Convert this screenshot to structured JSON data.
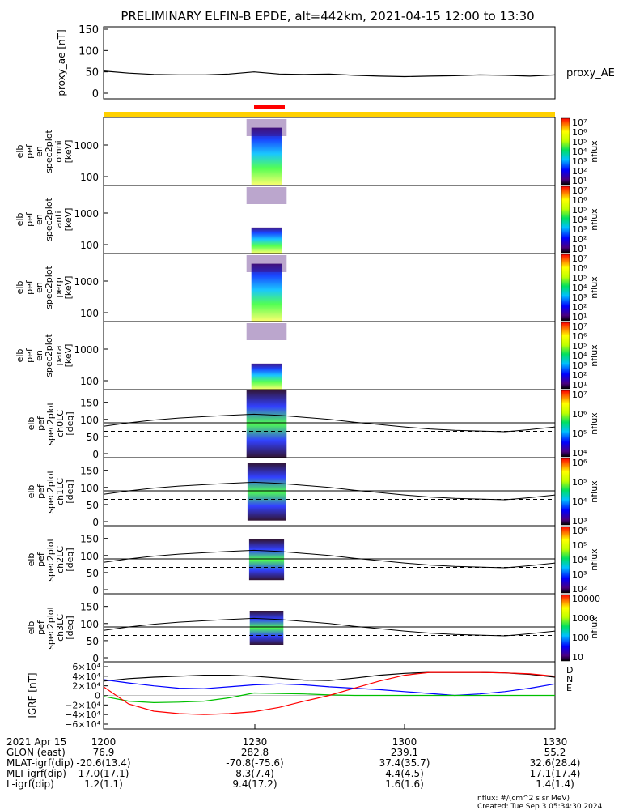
{
  "title": "PRELIMINARY ELFIN-B EPDE, alt=442km, 2021-04-15 12:00 to 13:30",
  "footer_left_labels": [
    "2021 Apr 15",
    "GLON (east)",
    "MLAT-igrf(dip)",
    "MLT-igrf(dip)",
    "L-igrf(dip)"
  ],
  "footer_columns": [
    {
      "time": "1200",
      "values": [
        "76.9",
        "-20.6(13.4)",
        "17.0(17.1)",
        "1.2(1.1)"
      ]
    },
    {
      "time": "1230",
      "values": [
        "282.8",
        "-70.8(-75.6)",
        "8.3(7.4)",
        "9.4(17.2)"
      ]
    },
    {
      "time": "1300",
      "values": [
        "239.1",
        "37.4(35.7)",
        "4.4(4.5)",
        "1.6(1.6)"
      ]
    },
    {
      "time": "1330",
      "values": [
        "55.2",
        "32.6(28.4)",
        "17.1(17.4)",
        "1.4(1.4)"
      ]
    }
  ],
  "footer_right_line1": "nflux: #/(cm^2 s sr MeV)",
  "footer_right_line2": "Created: Tue Sep  3 05:34:30 2024",
  "chart_data": [
    {
      "type": "line",
      "ylabel": "proxy_ae [nT]",
      "series_label": "proxy_AE",
      "ylim": [
        0,
        150
      ],
      "yticks": [
        "150",
        "100",
        "50",
        "0"
      ],
      "x_minutes": [
        0,
        5,
        10,
        15,
        20,
        25,
        30,
        35,
        40,
        45,
        50,
        55,
        60,
        65,
        70,
        75,
        80,
        85,
        90
      ],
      "values": [
        52,
        47,
        44,
        43,
        43,
        45,
        50,
        45,
        44,
        45,
        42,
        40,
        39,
        40,
        41,
        43,
        42,
        40,
        43
      ]
    },
    {
      "type": "heatmap",
      "ylabel": [
        "elb",
        "pef",
        "en",
        "spec2plot",
        "omni",
        "[keV]"
      ],
      "scale": "log",
      "yticks": [
        "1000",
        "100"
      ],
      "colorbar_label": "nflux",
      "colorbar_ticks": [
        "10^7",
        "10^6",
        "10^5",
        "10^4",
        "10^3",
        "10^2",
        "10^1"
      ]
    },
    {
      "type": "heatmap",
      "ylabel": [
        "elb",
        "pef",
        "en",
        "spec2plot",
        "anti",
        "[keV]"
      ],
      "scale": "log",
      "yticks": [
        "1000",
        "100"
      ],
      "colorbar_label": "nflux",
      "colorbar_ticks": [
        "10^7",
        "10^6",
        "10^5",
        "10^4",
        "10^3",
        "10^2",
        "10^1"
      ]
    },
    {
      "type": "heatmap",
      "ylabel": [
        "elb",
        "pef",
        "en",
        "spec2plot",
        "perp",
        "[keV]"
      ],
      "scale": "log",
      "yticks": [
        "1000",
        "100"
      ],
      "colorbar_label": "nflux",
      "colorbar_ticks": [
        "10^7",
        "10^6",
        "10^5",
        "10^4",
        "10^3",
        "10^2",
        "10^1"
      ]
    },
    {
      "type": "heatmap",
      "ylabel": [
        "elb",
        "pef",
        "en",
        "spec2plot",
        "para",
        "[keV]"
      ],
      "scale": "log",
      "yticks": [
        "1000",
        "100"
      ],
      "colorbar_label": "nflux",
      "colorbar_ticks": [
        "10^7",
        "10^6",
        "10^5",
        "10^4",
        "10^3",
        "10^2",
        "10^1"
      ]
    },
    {
      "type": "heatmap",
      "ylabel": [
        "elb",
        "pef",
        "spec2plot",
        "ch0LC",
        "[deg]"
      ],
      "ylim": [
        0,
        180
      ],
      "yticks": [
        "150",
        "100",
        "50",
        "0"
      ],
      "colorbar_label": "nflux",
      "colorbar_ticks": [
        "10^7",
        "10^6",
        "10^5",
        "10^4"
      ]
    },
    {
      "type": "heatmap",
      "ylabel": [
        "elb",
        "pef",
        "spec2plot",
        "ch1LC",
        "[deg]"
      ],
      "ylim": [
        0,
        180
      ],
      "yticks": [
        "150",
        "100",
        "50",
        "0"
      ],
      "colorbar_label": "nflux",
      "colorbar_ticks": [
        "10^6",
        "10^5",
        "10^4",
        "10^3"
      ]
    },
    {
      "type": "heatmap",
      "ylabel": [
        "elb",
        "pef",
        "spec2plot",
        "ch2LC",
        "[deg]"
      ],
      "ylim": [
        0,
        180
      ],
      "yticks": [
        "150",
        "100",
        "50",
        "0"
      ],
      "colorbar_label": "nflux",
      "colorbar_ticks": [
        "10^6",
        "10^5",
        "10^4",
        "10^3",
        "10^2"
      ]
    },
    {
      "type": "heatmap",
      "ylabel": [
        "elb",
        "pef",
        "spec2plot",
        "ch3LC",
        "[deg]"
      ],
      "ylim": [
        0,
        180
      ],
      "yticks": [
        "150",
        "100",
        "50",
        "0"
      ],
      "colorbar_label": "nflux",
      "colorbar_ticks": [
        "10000",
        "1000",
        "100",
        "10"
      ]
    },
    {
      "type": "line",
      "ylabel": "IGRF [nT]",
      "ylim": [
        -60000,
        60000
      ],
      "yticks": [
        "6×10⁴",
        "4×10⁴",
        "2×10⁴",
        "0",
        "−2×10⁴",
        "−4×10⁴",
        "−6×10⁴"
      ],
      "x_minutes": [
        0,
        5,
        10,
        15,
        20,
        25,
        30,
        35,
        40,
        45,
        50,
        55,
        60,
        65,
        70,
        75,
        80,
        85,
        90
      ],
      "series": [
        {
          "name": "D",
          "color": "#000000",
          "values": [
            30000,
            35000,
            38000,
            40000,
            42000,
            42000,
            40000,
            36000,
            32000,
            31000,
            36000,
            42000,
            46000,
            48000,
            48000,
            48000,
            47000,
            44000,
            38000
          ]
        },
        {
          "name": "N",
          "color": "#0000ff",
          "values": [
            33000,
            26000,
            20000,
            15000,
            14000,
            18000,
            22000,
            24000,
            22000,
            18000,
            15000,
            12000,
            8000,
            4000,
            0,
            3000,
            8000,
            15000,
            24000
          ]
        },
        {
          "name": "E",
          "color": "#00c000",
          "values": [
            -2000,
            -12000,
            -15000,
            -14000,
            -12000,
            -5000,
            5000,
            4000,
            3000,
            1000,
            0,
            0,
            0,
            0,
            0,
            0,
            0,
            0,
            0
          ]
        },
        {
          "name": "",
          "color": "#ff0000",
          "values": [
            18000,
            -18000,
            -33000,
            -38000,
            -40000,
            -38000,
            -34000,
            -25000,
            -12000,
            0,
            15000,
            30000,
            42000,
            48000,
            48000,
            48000,
            47000,
            45000,
            40000
          ]
        }
      ]
    }
  ],
  "colors": {
    "yellow_bar": "#ffd000",
    "red_bar": "#ff0000",
    "line": "#000000"
  }
}
